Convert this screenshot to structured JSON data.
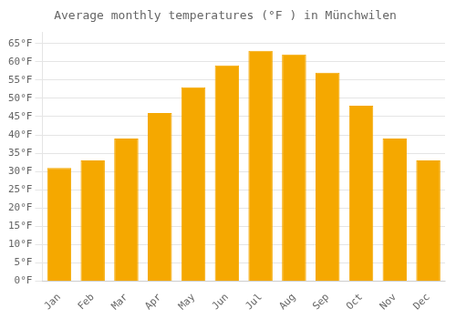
{
  "chart_data": {
    "type": "bar",
    "title": "Average monthly temperatures (°F ) in Münchwilen",
    "categories": [
      "Jan",
      "Feb",
      "Mar",
      "Apr",
      "May",
      "Jun",
      "Jul",
      "Aug",
      "Sep",
      "Oct",
      "Nov",
      "Dec"
    ],
    "values": [
      31,
      33,
      39,
      46,
      53,
      59,
      63,
      62,
      57,
      48,
      39,
      33
    ],
    "color": "#F5A800",
    "ylim": [
      0,
      68
    ],
    "yticks": [
      {
        "value": 0,
        "label": "0°F"
      },
      {
        "value": 5,
        "label": "5°F"
      },
      {
        "value": 10,
        "label": "10°F"
      },
      {
        "value": 15,
        "label": "15°F"
      },
      {
        "value": 20,
        "label": "20°F"
      },
      {
        "value": 25,
        "label": "25°F"
      },
      {
        "value": 30,
        "label": "30°F"
      },
      {
        "value": 35,
        "label": "35°F"
      },
      {
        "value": 40,
        "label": "40°F"
      },
      {
        "value": 45,
        "label": "45°F"
      },
      {
        "value": 50,
        "label": "50°F"
      },
      {
        "value": 55,
        "label": "55°F"
      },
      {
        "value": 60,
        "label": "60°F"
      },
      {
        "value": 65,
        "label": "65°F"
      }
    ],
    "grid": true
  }
}
